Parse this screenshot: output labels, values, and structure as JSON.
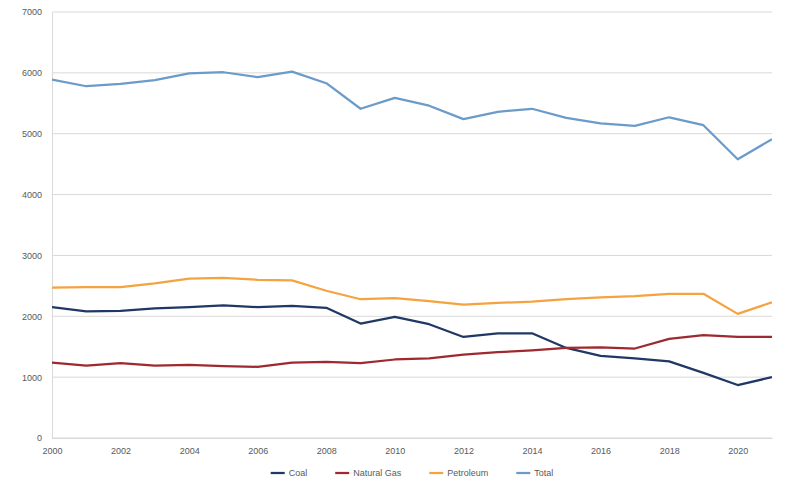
{
  "chart_data": {
    "type": "line",
    "x": [
      2000,
      2001,
      2002,
      2003,
      2004,
      2005,
      2006,
      2007,
      2008,
      2009,
      2010,
      2011,
      2012,
      2013,
      2014,
      2015,
      2016,
      2017,
      2018,
      2019,
      2020,
      2021
    ],
    "series": [
      {
        "name": "Coal",
        "color": "#1f3864",
        "values": [
          2150,
          2080,
          2090,
          2130,
          2150,
          2180,
          2150,
          2170,
          2140,
          1880,
          1990,
          1870,
          1660,
          1720,
          1720,
          1480,
          1350,
          1310,
          1260,
          1070,
          870,
          1000
        ]
      },
      {
        "name": "Natural Gas",
        "color": "#9e2a2f",
        "values": [
          1240,
          1190,
          1230,
          1190,
          1200,
          1180,
          1170,
          1240,
          1250,
          1230,
          1290,
          1310,
          1370,
          1410,
          1440,
          1480,
          1490,
          1470,
          1630,
          1690,
          1660,
          1660
        ]
      },
      {
        "name": "Petroleum",
        "color": "#f4a340",
        "values": [
          2470,
          2480,
          2480,
          2540,
          2620,
          2630,
          2600,
          2590,
          2420,
          2280,
          2300,
          2250,
          2190,
          2220,
          2240,
          2280,
          2310,
          2330,
          2370,
          2370,
          2040,
          2230
        ]
      },
      {
        "name": "Total",
        "color": "#6b9bc9",
        "values": [
          5890,
          5780,
          5820,
          5880,
          5990,
          6010,
          5930,
          6020,
          5830,
          5410,
          5590,
          5460,
          5240,
          5360,
          5410,
          5260,
          5170,
          5130,
          5270,
          5140,
          4580,
          4910
        ]
      }
    ],
    "xlim": [
      2000,
      2021
    ],
    "xticks": [
      2000,
      2002,
      2004,
      2006,
      2008,
      2010,
      2012,
      2014,
      2016,
      2018,
      2020
    ],
    "ylim": [
      0,
      7000
    ],
    "yticks": [
      0,
      1000,
      2000,
      3000,
      4000,
      5000,
      6000,
      7000
    ],
    "grid": true,
    "legend": "bottom"
  }
}
